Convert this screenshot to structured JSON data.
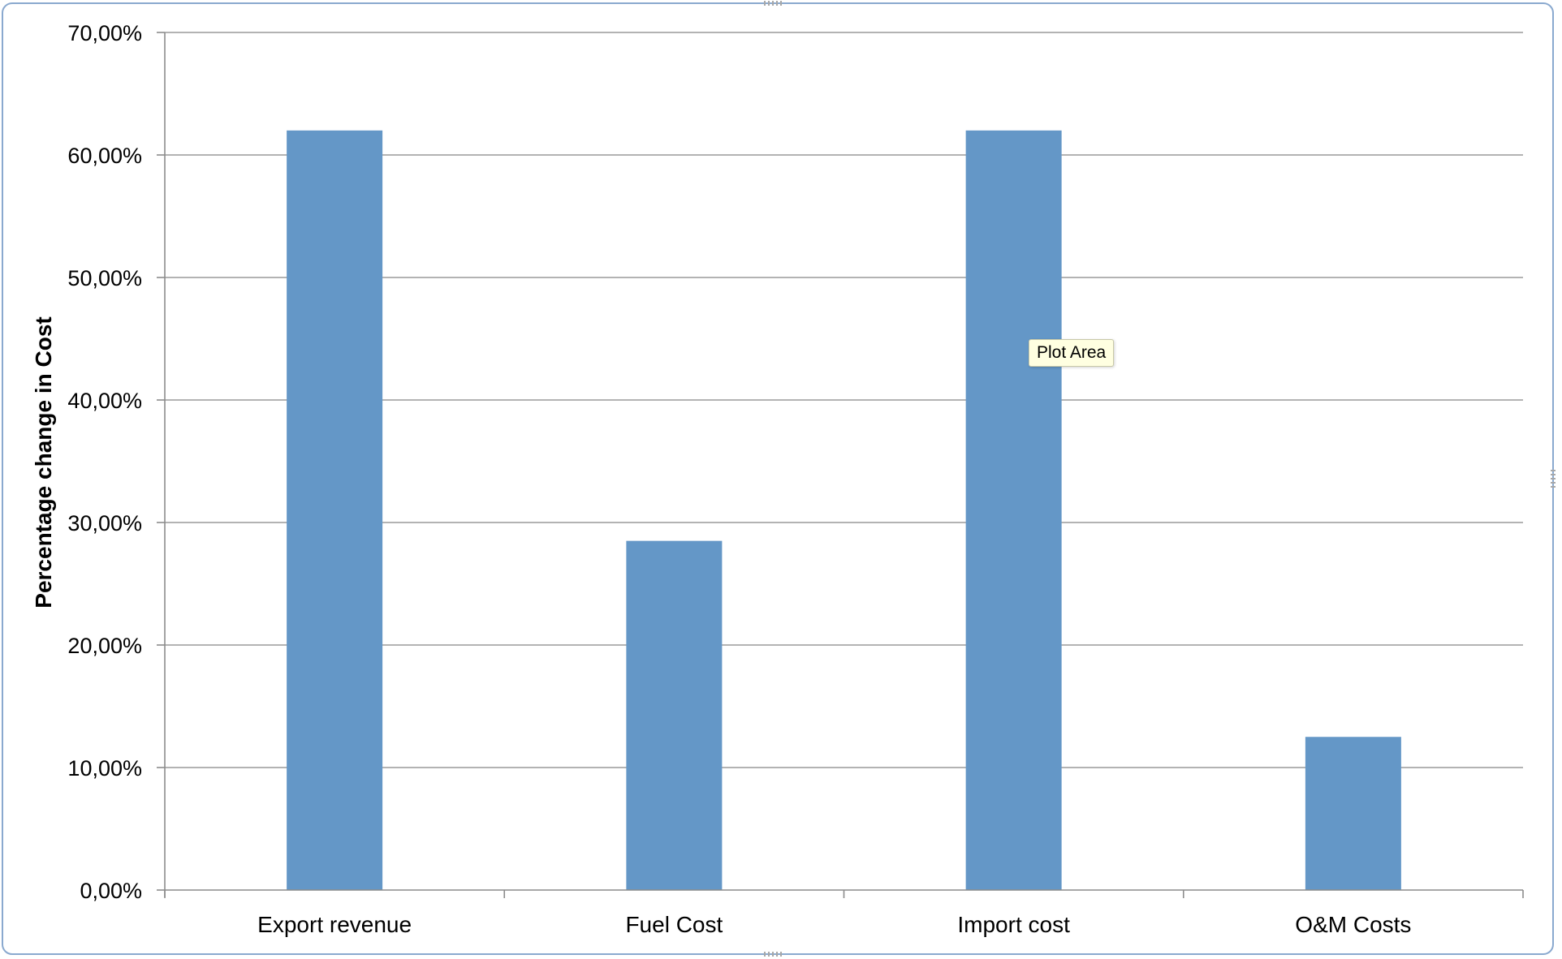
{
  "tooltip": {
    "text": "Plot Area"
  },
  "colors": {
    "bar": "#6497c7",
    "gridline": "#9a9a9a",
    "frame": "#8aa9cf"
  },
  "chart_data": {
    "type": "bar",
    "title": "",
    "xlabel": "",
    "ylabel": "Percentage change in Cost",
    "categories": [
      "Export revenue",
      "Fuel Cost",
      "Import cost",
      "O&M Costs"
    ],
    "values": [
      62.0,
      28.5,
      62.0,
      12.5
    ],
    "ylim": [
      0,
      70
    ],
    "y_ticks": [
      0,
      10,
      20,
      30,
      40,
      50,
      60,
      70
    ],
    "y_tick_labels": [
      "0,00%",
      "10,00%",
      "20,00%",
      "30,00%",
      "40,00%",
      "50,00%",
      "60,00%",
      "70,00%"
    ],
    "grid": true,
    "legend": "none"
  }
}
